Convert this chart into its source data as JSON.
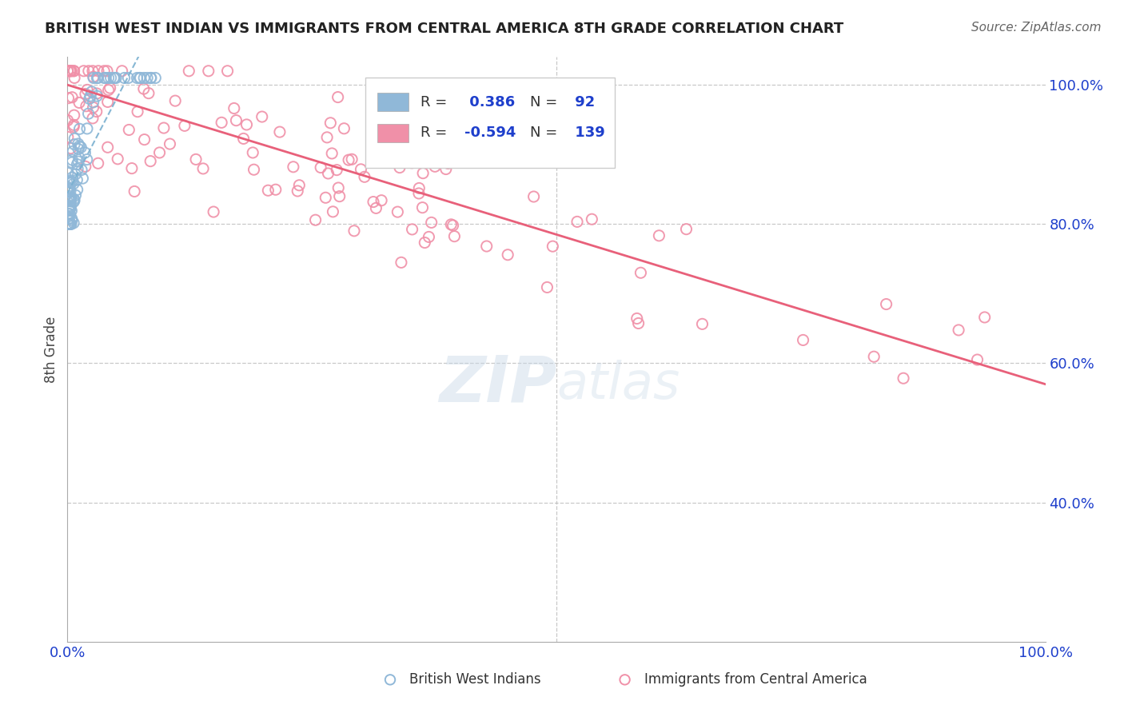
{
  "title": "BRITISH WEST INDIAN VS IMMIGRANTS FROM CENTRAL AMERICA 8TH GRADE CORRELATION CHART",
  "source": "Source: ZipAtlas.com",
  "ylabel": "8th Grade",
  "blue_R": 0.386,
  "blue_N": 92,
  "pink_R": -0.594,
  "pink_N": 139,
  "blue_color": "#90b8d8",
  "blue_fill_color": "#6699cc",
  "pink_color": "#f090a8",
  "pink_fill_color": "#ee82a0",
  "blue_line_color": "#7ab0d0",
  "pink_line_color": "#e8607a",
  "title_color": "#222222",
  "axis_label_color": "#1e3fcc",
  "source_color": "#666666",
  "background_color": "#ffffff",
  "grid_color": "#bbbbbb",
  "watermark_color": "#c8d8e8",
  "legend_text_color": "#333333",
  "legend_val_color": "#1e3fcc",
  "ylim_min": 0.2,
  "ylim_max": 1.04,
  "xlim_min": 0.0,
  "xlim_max": 1.0
}
